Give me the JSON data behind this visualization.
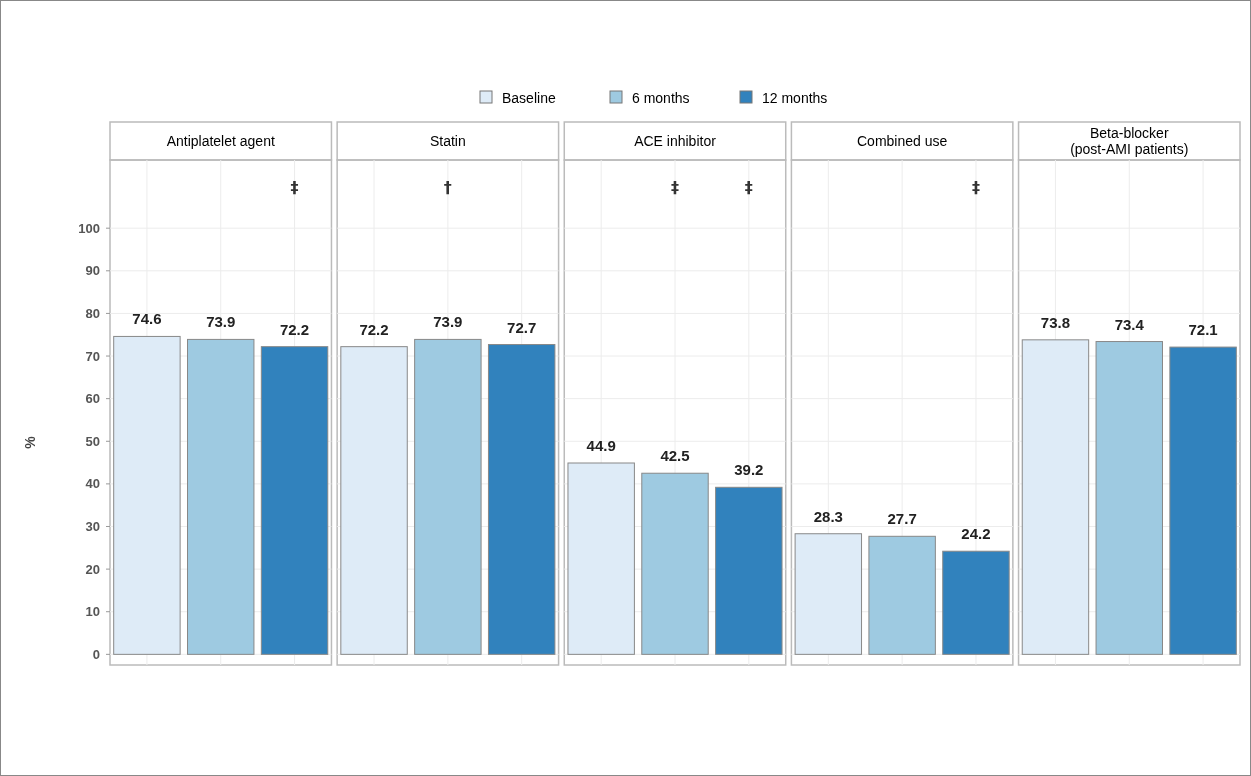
{
  "chart_data": {
    "type": "bar",
    "ylabel": "%",
    "categories": [
      "Antiplatelet agent",
      "Statin",
      "ACE inhibitor",
      "Combined use",
      "Beta-blocker\n(post-AMI patients)"
    ],
    "ylim": [
      -2.5,
      116
    ],
    "yticks": [
      0,
      10,
      20,
      30,
      40,
      50,
      60,
      70,
      80,
      90,
      100
    ],
    "grid": true,
    "legend": "top",
    "data_labels": true,
    "series": [
      {
        "name": "Baseline",
        "color": "#deebf7",
        "values": [
          74.6,
          72.2,
          44.9,
          28.3,
          73.8
        ]
      },
      {
        "name": "6 months",
        "color": "#9ecae1",
        "values": [
          73.9,
          73.9,
          42.5,
          27.7,
          73.4
        ]
      },
      {
        "name": "12 months",
        "color": "#3182bd",
        "values": [
          72.2,
          72.7,
          39.2,
          24.2,
          72.1
        ]
      }
    ],
    "annotations": [
      "‡",
      "†",
      "‡",
      "‡",
      "‡"
    ]
  }
}
